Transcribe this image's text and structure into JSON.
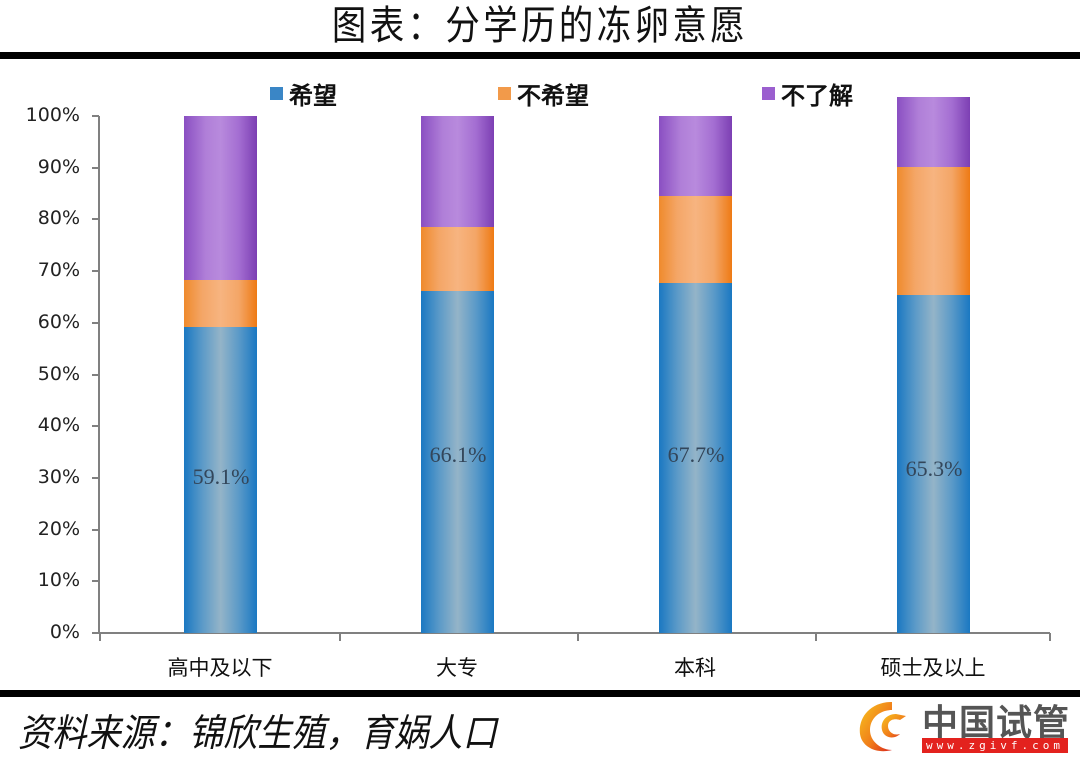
{
  "title": "图表：分学历的冻卵意愿",
  "source": "资料来源：锦欣生殖，育娲人口",
  "logo": {
    "name": "中国试管",
    "url": "www.zgivf.com",
    "accent": "#e3221e"
  },
  "legend": [
    {
      "label": "希望",
      "color": "#3a86c6"
    },
    {
      "label": "不希望",
      "color": "#f29a4a"
    },
    {
      "label": "不了解",
      "color": "#9b5fcf"
    }
  ],
  "yaxis": {
    "ticks": [
      "100%",
      "90%",
      "80%",
      "70%",
      "60%",
      "50%",
      "40%",
      "30%",
      "20%",
      "10%",
      "0%"
    ]
  },
  "xaxis": {
    "categories": [
      "高中及以下",
      "大专",
      "本科",
      "硕士及以上"
    ]
  },
  "bars": [
    {
      "category": "高中及以下",
      "label": "59.1%"
    },
    {
      "category": "大专",
      "label": "66.1%"
    },
    {
      "category": "本科",
      "label": "67.7%"
    },
    {
      "category": "硕士及以上",
      "label": "65.3%"
    }
  ],
  "chart_data": {
    "type": "bar",
    "stacked": true,
    "percent_stacked": true,
    "title": "图表：分学历的冻卵意愿",
    "categories": [
      "高中及以下",
      "大专",
      "本科",
      "硕士及以上"
    ],
    "series": [
      {
        "name": "希望",
        "values": [
          59.1,
          66.1,
          67.7,
          65.3
        ],
        "color": "#3a86c6"
      },
      {
        "name": "不希望",
        "values": [
          9.2,
          12.4,
          16.8,
          24.8
        ],
        "color": "#f29a4a"
      },
      {
        "name": "不了解",
        "values": [
          31.7,
          21.5,
          15.5,
          13.5
        ],
        "color": "#9b5fcf"
      }
    ],
    "data_labels": [
      "59.1%",
      "66.1%",
      "67.7%",
      "65.3%"
    ],
    "xlabel": "",
    "ylabel": "",
    "ylim": [
      0,
      100
    ],
    "ytick_format": "percent",
    "grid": false,
    "legend_position": "top",
    "source": "资料来源：锦欣生殖，育娲人口"
  }
}
